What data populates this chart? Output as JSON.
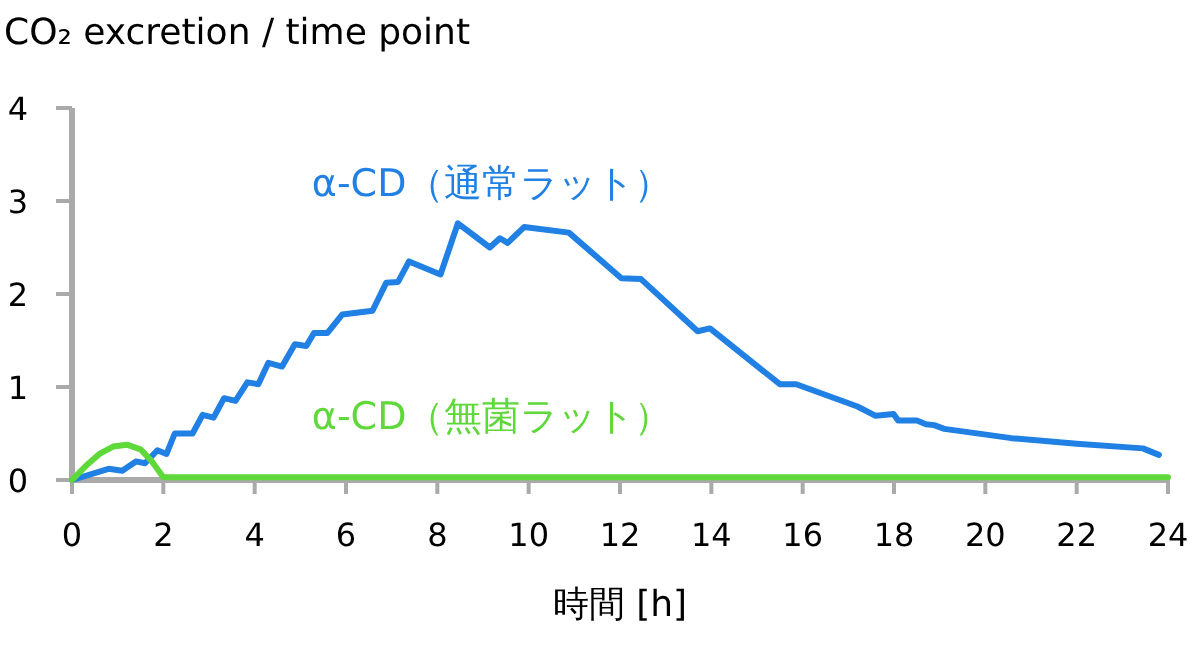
{
  "chart_data": {
    "type": "line",
    "title": "CO₂ excretion / time point",
    "xlabel": "時間 [h]",
    "xlim": [
      0,
      24
    ],
    "xticks": [
      0,
      2,
      4,
      6,
      8,
      10,
      12,
      14,
      16,
      18,
      20,
      22,
      24
    ],
    "ylim": [
      0,
      4
    ],
    "yticks": [
      0,
      1,
      2,
      3,
      4
    ],
    "grid": false,
    "legend": false,
    "marker": "none",
    "line_style": "solid",
    "series": [
      {
        "name": "α-CD（通常ラット）",
        "color": "#2180e3",
        "x": [
          0,
          0.8,
          1.1,
          1.4,
          1.6,
          1.87,
          2.07,
          2.25,
          2.64,
          2.86,
          3.1,
          3.33,
          3.58,
          3.84,
          4.08,
          4.3,
          4.6,
          4.88,
          5.13,
          5.3,
          5.59,
          5.92,
          6.58,
          6.88,
          7.14,
          7.38,
          8.07,
          8.45,
          9.15,
          9.37,
          9.54,
          9.9,
          10.88,
          12.03,
          12.46,
          13.7,
          13.97,
          15.5,
          15.86,
          17.2,
          17.6,
          17.99,
          18.09,
          18.5,
          18.7,
          18.88,
          19.1,
          20.57,
          22.0,
          23.45,
          23.8
        ],
        "values": [
          0,
          0.12,
          0.1,
          0.2,
          0.18,
          0.32,
          0.28,
          0.5,
          0.5,
          0.7,
          0.67,
          0.88,
          0.85,
          1.05,
          1.03,
          1.26,
          1.22,
          1.46,
          1.44,
          1.58,
          1.58,
          1.78,
          1.82,
          2.12,
          2.13,
          2.35,
          2.21,
          2.76,
          2.5,
          2.6,
          2.55,
          2.72,
          2.66,
          2.17,
          2.16,
          1.6,
          1.63,
          1.03,
          1.03,
          0.79,
          0.69,
          0.71,
          0.64,
          0.64,
          0.6,
          0.59,
          0.55,
          0.45,
          0.39,
          0.34,
          0.27
        ]
      },
      {
        "name": "α-CD（無菌ラット）",
        "color": "#5fd83a",
        "x": [
          0,
          0.3,
          0.6,
          0.9,
          1.2,
          1.5,
          1.75,
          2.0,
          24
        ],
        "values": [
          0,
          0.15,
          0.28,
          0.36,
          0.38,
          0.33,
          0.2,
          0.03,
          0.03
        ]
      }
    ]
  }
}
